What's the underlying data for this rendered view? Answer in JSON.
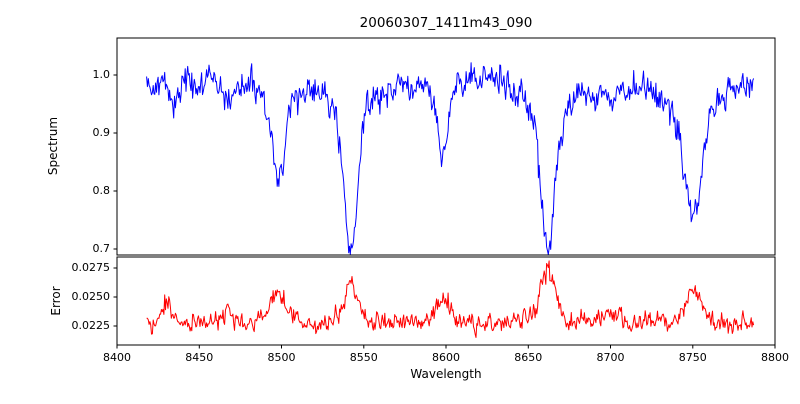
{
  "chart_data": {
    "type": "line",
    "title": "20060307_1411m43_090",
    "xlabel": "Wavelength",
    "xlim": [
      8400,
      8800
    ],
    "xticks": [
      "8400",
      "8450",
      "8500",
      "8550",
      "8600",
      "8650",
      "8700",
      "8750",
      "8800"
    ],
    "grid": false,
    "legend": null,
    "noise_seed": 42,
    "panels": [
      {
        "ylabel": "Spectrum",
        "color": "#0000ff",
        "ylim": [
          0.6897,
          1.0638
        ],
        "yticks": [
          "0.7",
          "0.8",
          "0.9",
          "1.0"
        ],
        "series_model": {
          "x_start": 8418,
          "x_end": 8787,
          "n_points": 740,
          "continuum": 0.985,
          "noise_sigma": 0.018,
          "features": [
            {
              "center": 8434,
              "depth": 0.035,
              "width": 2.0
            },
            {
              "center": 8468,
              "depth": 0.03,
              "width": 2.5
            },
            {
              "center": 8498,
              "depth": 0.135,
              "width": 3.5,
              "wing_depth": 0.035,
              "wing_width": 10
            },
            {
              "center": 8542,
              "depth": 0.235,
              "width": 4.0,
              "wing_depth": 0.055,
              "wing_width": 12
            },
            {
              "center": 8598,
              "depth": 0.1,
              "width": 3.0,
              "wing_depth": 0.025,
              "wing_width": 8
            },
            {
              "center": 8616,
              "depth": -0.012,
              "width": 18
            },
            {
              "center": 8662,
              "depth": 0.235,
              "width": 4.0,
              "wing_depth": 0.055,
              "wing_width": 12
            },
            {
              "center": 8695,
              "depth": 0.02,
              "width": 12
            },
            {
              "center": 8750,
              "depth": 0.17,
              "width": 5.0,
              "wing_depth": 0.06,
              "wing_width": 14
            }
          ]
        }
      },
      {
        "ylabel": "Error",
        "color": "#ff0000",
        "ylim": [
          0.02086,
          0.02845
        ],
        "yticks": [
          "0.0225",
          "0.0250",
          "0.0275"
        ],
        "series_model": {
          "x_start": 8418,
          "x_end": 8787,
          "n_points": 740,
          "baseline": 0.0228,
          "noise_sigma": 0.0006,
          "features": [
            {
              "center": 8430,
              "height": 0.0019,
              "width": 2.5
            },
            {
              "center": 8467,
              "height": 0.001,
              "width": 3
            },
            {
              "center": 8498,
              "height": 0.0023,
              "width": 5
            },
            {
              "center": 8542,
              "height": 0.0031,
              "width": 4.5
            },
            {
              "center": 8598,
              "height": 0.0017,
              "width": 5
            },
            {
              "center": 8662,
              "height": 0.0047,
              "width": 4.5
            },
            {
              "center": 8700,
              "height": 0.0007,
              "width": 6
            },
            {
              "center": 8750,
              "height": 0.0029,
              "width": 5
            }
          ]
        }
      }
    ]
  }
}
